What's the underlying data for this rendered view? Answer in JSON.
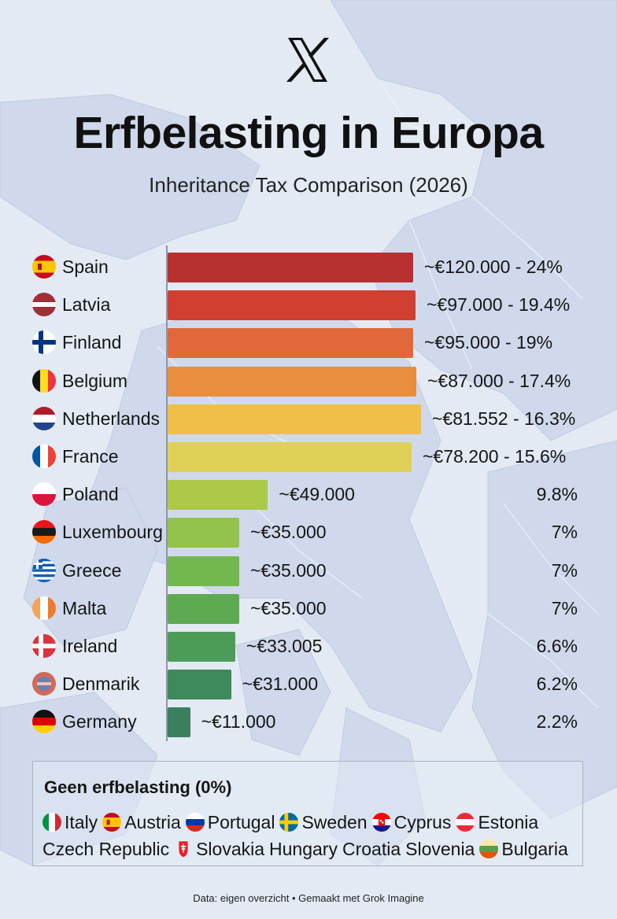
{
  "header": {
    "logo_icon": "x-logo-icon",
    "title": "Erfbelasting in Europa",
    "subtitle": "Inheritance Tax Comparison (2026)"
  },
  "chart_data": {
    "type": "bar",
    "orientation": "horizontal",
    "title": "Erfbelasting in Europa",
    "subtitle": "Inheritance Tax Comparison (2026)",
    "categories": [
      "Spain",
      "Latvia",
      "Finland",
      "Belgium",
      "Netherlands",
      "France",
      "Poland",
      "Luxembourg",
      "Greece",
      "Malta",
      "Ireland",
      "Denmarik",
      "Germany"
    ],
    "values": [
      120000,
      97000,
      95000,
      87000,
      81552,
      78200,
      49000,
      35000,
      35000,
      35000,
      33005,
      31000,
      11000
    ],
    "percent_values": [
      24,
      19.4,
      19,
      17.4,
      16.3,
      15.6,
      9.8,
      7,
      7,
      7,
      6.6,
      6.2,
      2.2
    ],
    "amount_labels": [
      "~€120.000 - 24%",
      "~€97.000 - 19.4%",
      "~€95.000 - 19%",
      "~€87.000 - 17.4%",
      "~€81.552 - 16.3%",
      "~€78.200 - 15.6%",
      "~€49.000",
      "~€35.000",
      "~€35.000",
      "~€35.000",
      "~€33.005",
      "~€31.000",
      "~€11.000"
    ],
    "percent_labels": [
      "",
      "",
      "",
      "",
      "",
      "",
      "9.8%",
      "7%",
      "7%",
      "7%",
      "6.6%",
      "6.2%",
      "2.2%"
    ],
    "bar_colors": [
      "#b8302f",
      "#d13f31",
      "#e0683a",
      "#e98e3e",
      "#f0bf47",
      "#dfd157",
      "#aec84a",
      "#93c34c",
      "#72b84e",
      "#5eaa52",
      "#4d9b59",
      "#3f8a5c",
      "#3a7f5e"
    ],
    "flag_icons": [
      "spain-flag-icon",
      "latvia-flag-icon",
      "finland-flag-icon",
      "belgium-flag-icon",
      "netherlands-flag-icon",
      "france-flag-icon",
      "poland-flag-icon",
      "luxembourg-flag-icon",
      "greece-flag-icon",
      "malta-flag-icon",
      "ireland-flag-icon",
      "denmark-flag-icon",
      "germany-flag-icon"
    ],
    "grid": false,
    "legend": "none"
  },
  "zero_tax": {
    "title": "Geen erfbelasting (0%)",
    "line1": [
      {
        "name": "Italy",
        "flag": "italy-flag-icon"
      },
      {
        "name": "Austria",
        "flag": "spain-flag-icon"
      },
      {
        "name": "Portugal",
        "flag": "russia-flag-icon"
      },
      {
        "name": "Sweden",
        "flag": "sweden-flag-icon"
      },
      {
        "name": "Cyprus",
        "flag": "croatia-flag-icon"
      },
      {
        "name": "Estonia",
        "flag": "austria-flag-icon"
      }
    ],
    "line2": [
      {
        "name": "Czech Republic",
        "flag": ""
      },
      {
        "name": "Slovakia",
        "flag": "slovakia-shield-icon"
      },
      {
        "name": "Hungary",
        "flag": ""
      },
      {
        "name": "Croatia",
        "flag": ""
      },
      {
        "name": "Slovenia",
        "flag": ""
      },
      {
        "name": "Bulgaria",
        "flag": "bulgaria-flag-icon"
      }
    ]
  },
  "footer": {
    "text": "Data: eigen overzicht • Gemaakt met Grok Imagine"
  },
  "colors": {
    "background": "#dfe7f2",
    "map_land": "#cdd8ea",
    "axis": "#8f96a3",
    "text": "#111111"
  }
}
